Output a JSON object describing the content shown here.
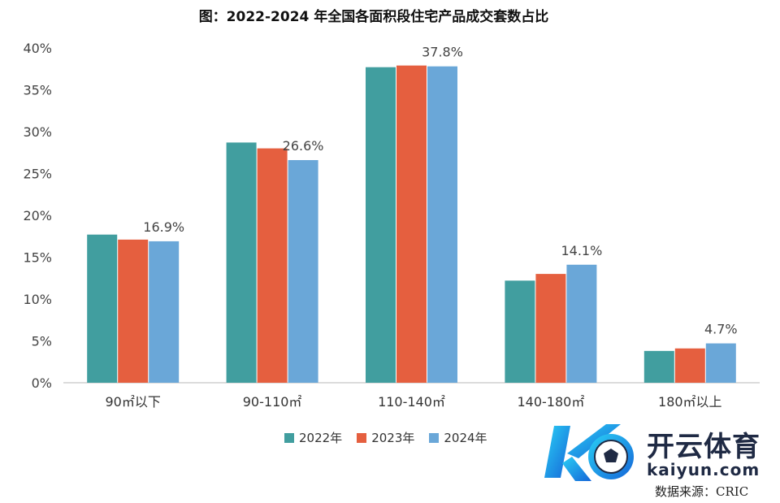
{
  "chart_data": {
    "type": "bar",
    "title": "图：2022-2024 年全国各面积段住宅产品成交套数占比",
    "categories": [
      "90㎡以下",
      "90-110㎡",
      "110-140㎡",
      "140-180㎡",
      "180㎡以上"
    ],
    "series": [
      {
        "name": "2022年",
        "color": "#419e9f",
        "values": [
          17.7,
          28.7,
          37.7,
          12.2,
          3.8
        ]
      },
      {
        "name": "2023年",
        "color": "#e55f3f",
        "values": [
          17.1,
          28.0,
          37.9,
          13.0,
          4.1
        ]
      },
      {
        "name": "2024年",
        "color": "#6aa7d8",
        "values": [
          16.9,
          26.6,
          37.8,
          14.1,
          4.7
        ]
      }
    ],
    "data_labels": [
      "16.9%",
      "26.6%",
      "37.8%",
      "14.1%",
      "4.7%"
    ],
    "ylim": [
      0,
      40
    ],
    "y_ticks": [
      "0%",
      "5%",
      "10%",
      "15%",
      "20%",
      "25%",
      "30%",
      "35%",
      "40%"
    ],
    "grid": false,
    "legend_position": "bottom"
  },
  "watermark": {
    "logo_text": "开云体育",
    "url": "kaiyun.com",
    "icon": "soccer-ball-k-logo-icon"
  },
  "source_note": "数据来源：CRIC"
}
